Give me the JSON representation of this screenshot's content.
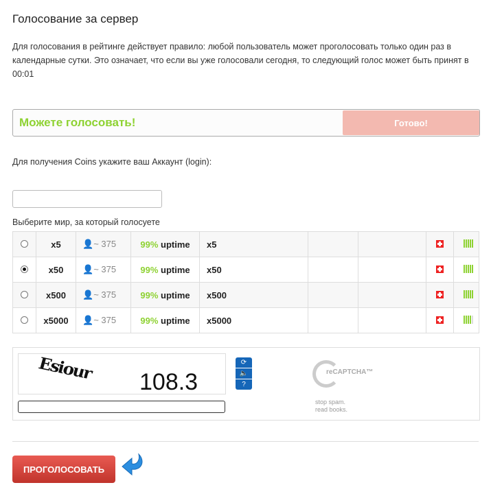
{
  "title": "Голосование за сервер",
  "intro": "Для голосования в рейтинге действует правило: любой пользователь может проголосовать только один раз в календарные сутки. Это означает, что если вы уже голосовали сегодня, то следующий голос может быть принят в 00:01",
  "status": {
    "message": "Можете голосовать!",
    "button": "Готово!"
  },
  "login_label": "Для получения Coins укажите ваш Аккаунт (login):",
  "login_value": "",
  "world_label": "Выберите мир, за который голосуете",
  "worlds": [
    {
      "name": "x5",
      "online": "~ 375",
      "pct": "99%",
      "uptime": "uptime",
      "desc": "x5",
      "selected": false,
      "signal": 5
    },
    {
      "name": "x50",
      "online": "~ 375",
      "pct": "99%",
      "uptime": "uptime",
      "desc": "x50",
      "selected": true,
      "signal": 5
    },
    {
      "name": "x500",
      "online": "~ 375",
      "pct": "99%",
      "uptime": "uptime",
      "desc": "x500",
      "selected": false,
      "signal": 5
    },
    {
      "name": "x5000",
      "online": "~ 375",
      "pct": "99%",
      "uptime": "uptime",
      "desc": "x5000",
      "selected": false,
      "signal": 4
    }
  ],
  "captcha": {
    "word": "Esiour",
    "number": "108.3",
    "brand": "reCAPTCHA™",
    "tag1": "stop spam.",
    "tag2": "read books.",
    "input_value": ""
  },
  "vote_button": "ПРОГОЛОСОВАТЬ",
  "colors": {
    "accent_green": "#8ed232",
    "vote_red": "#d4443c",
    "ready_pink": "#f3b9b0",
    "captcha_blue": "#1566b8"
  }
}
